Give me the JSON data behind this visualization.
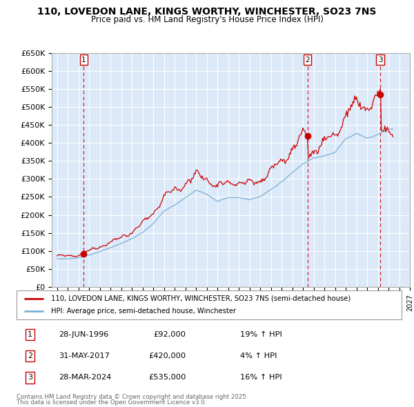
{
  "title": "110, LOVEDON LANE, KINGS WORTHY, WINCHESTER, SO23 7NS",
  "subtitle": "Price paid vs. HM Land Registry's House Price Index (HPI)",
  "ylim": [
    0,
    650000
  ],
  "yticks": [
    0,
    50000,
    100000,
    150000,
    200000,
    250000,
    300000,
    350000,
    400000,
    450000,
    500000,
    550000,
    600000,
    650000
  ],
  "ytick_labels": [
    "£0",
    "£50K",
    "£100K",
    "£150K",
    "£200K",
    "£250K",
    "£300K",
    "£350K",
    "£400K",
    "£450K",
    "£500K",
    "£550K",
    "£600K",
    "£650K"
  ],
  "xlim_start": 1993.5,
  "xlim_end": 2027.0,
  "bg_color": "#dce9f8",
  "grid_color": "#ffffff",
  "line_color_red": "#cc0000",
  "line_color_blue": "#7aaed4",
  "sale_marker_color": "#cc0000",
  "vline_color": "#cc0000",
  "transactions": [
    {
      "label": "1",
      "date": "28-JUN-1996",
      "price": 92000,
      "x_year": 1996.5,
      "pct": "19% ↑ HPI"
    },
    {
      "label": "2",
      "date": "31-MAY-2017",
      "price": 420000,
      "x_year": 2017.42,
      "pct": "4% ↑ HPI"
    },
    {
      "label": "3",
      "date": "28-MAR-2024",
      "price": 535000,
      "x_year": 2024.25,
      "pct": "16% ↑ HPI"
    }
  ],
  "legend_line1": "110, LOVEDON LANE, KINGS WORTHY, WINCHESTER, SO23 7NS (semi-detached house)",
  "legend_line2": "HPI: Average price, semi-detached house, Winchester",
  "footer1": "Contains HM Land Registry data © Crown copyright and database right 2025.",
  "footer2": "This data is licensed under the Open Government Licence v3.0."
}
